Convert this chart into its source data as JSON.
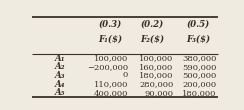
{
  "col_headers_line1": [
    "(0.3)",
    "(0.2)",
    "(0.5)"
  ],
  "col_headers_line2": [
    "F₁($)",
    "F₂($)",
    "F₃($)"
  ],
  "row_labels": [
    "A₁",
    "A₂",
    "A₃",
    "A₄",
    "A₅"
  ],
  "table_data": [
    [
      "100,000",
      "100,000",
      "380,000"
    ],
    [
      "−200,000",
      "160,000",
      "590,000"
    ],
    [
      "0",
      "180,000",
      "500,000"
    ],
    [
      "110,000",
      "280,000",
      "200,000"
    ],
    [
      "400,000",
      "90,000",
      "180,000"
    ]
  ],
  "bg_color": "#f0ebe0",
  "text_color": "#3a3028",
  "figsize": [
    2.44,
    1.1
  ],
  "dpi": 100
}
